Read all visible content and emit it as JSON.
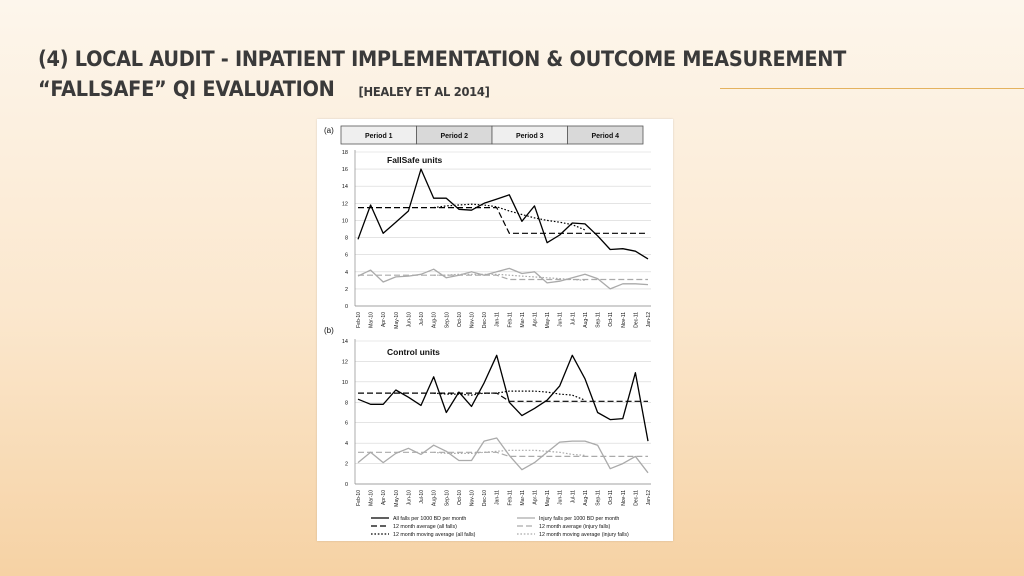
{
  "slide": {
    "title_line1": "(4) Local audit - Inpatient implementation & outcome measurement",
    "title_line2": "“Fallsafe” QI evaluation",
    "citation": "[Healey et al 2014]"
  },
  "colors": {
    "all_falls": "#000000",
    "injury_falls": "#aaaaaa",
    "accent_rule": "#e4b25e"
  },
  "chart_data": [
    {
      "type": "line",
      "panel": "(a)",
      "title": "FallSafe units",
      "periods": [
        "Period 1",
        "Period 2",
        "Period 3",
        "Period 4"
      ],
      "ylim": [
        0,
        18
      ],
      "yticks": [
        0,
        2,
        4,
        6,
        8,
        10,
        12,
        14,
        16,
        18
      ],
      "x": [
        "Feb-10",
        "Mar-10",
        "Apr-10",
        "May-10",
        "Jun-10",
        "Jul-10",
        "Aug-10",
        "Sep-10",
        "Oct-10",
        "Nov-10",
        "Dec-10",
        "Jan-11",
        "Feb-11",
        "Mar-11",
        "Apr-11",
        "May-11",
        "Jun-11",
        "Jul-11",
        "Aug-11",
        "Sep-11",
        "Oct-11",
        "Nov-11",
        "Dec-11",
        "Jan-12"
      ],
      "series": [
        {
          "name": "All falls per 1000 BD per month",
          "style": "solid",
          "color": "#000000",
          "values": [
            7.8,
            11.8,
            8.5,
            9.8,
            11.1,
            16.0,
            12.6,
            12.6,
            11.3,
            11.2,
            12.0,
            12.5,
            13.0,
            9.9,
            11.7,
            7.4,
            8.3,
            9.7,
            9.6,
            8.2,
            6.6,
            6.7,
            6.4,
            5.5
          ]
        },
        {
          "name": "12 month average (all falls)",
          "style": "dash",
          "color": "#000000",
          "values": [
            11.5,
            11.5,
            11.5,
            11.5,
            11.5,
            11.5,
            11.5,
            11.5,
            11.5,
            11.5,
            11.5,
            11.5,
            8.5,
            8.5,
            8.5,
            8.5,
            8.5,
            8.5,
            8.5,
            8.5,
            8.5,
            8.5,
            8.5,
            8.5
          ]
        },
        {
          "name": "12 month moving average (all falls)",
          "style": "dot",
          "color": "#000000",
          "values": [
            null,
            null,
            null,
            null,
            null,
            null,
            11.5,
            11.7,
            11.8,
            11.9,
            11.8,
            11.6,
            11.1,
            10.7,
            10.3,
            10.0,
            9.8,
            9.5,
            8.9,
            null,
            null,
            null,
            null,
            null
          ]
        },
        {
          "name": "Injury falls per 1000 BD per month",
          "style": "solid",
          "color": "#aaaaaa",
          "values": [
            3.5,
            4.2,
            2.8,
            3.4,
            3.5,
            3.7,
            4.3,
            3.3,
            3.6,
            4.0,
            3.6,
            4.0,
            4.4,
            3.8,
            4.0,
            2.7,
            2.9,
            3.3,
            3.7,
            3.2,
            2.0,
            2.6,
            2.6,
            2.5
          ]
        },
        {
          "name": "12 month average (injury falls)",
          "style": "dash",
          "color": "#aaaaaa",
          "values": [
            3.6,
            3.6,
            3.6,
            3.6,
            3.6,
            3.6,
            3.6,
            3.6,
            3.6,
            3.6,
            3.6,
            3.6,
            3.1,
            3.1,
            3.1,
            3.1,
            3.1,
            3.1,
            3.1,
            3.1,
            3.1,
            3.1,
            3.1,
            3.1
          ]
        },
        {
          "name": "12 month moving average (injury falls)",
          "style": "dot",
          "color": "#aaaaaa",
          "values": [
            null,
            null,
            null,
            null,
            null,
            null,
            3.6,
            3.6,
            3.7,
            3.7,
            3.7,
            3.7,
            3.6,
            3.5,
            3.4,
            3.3,
            3.2,
            3.1,
            3.0,
            null,
            null,
            null,
            null,
            null
          ]
        }
      ]
    },
    {
      "type": "line",
      "panel": "(b)",
      "title": "Control units",
      "ylim": [
        0,
        14
      ],
      "yticks": [
        0,
        2,
        4,
        6,
        8,
        10,
        12,
        14
      ],
      "x": [
        "Feb-10",
        "Mar-10",
        "Apr-10",
        "May-10",
        "Jun-10",
        "Jul-10",
        "Aug-10",
        "Sep-10",
        "Oct-10",
        "Nov-10",
        "Dec-10",
        "Jan-11",
        "Feb-11",
        "Mar-11",
        "Apr-11",
        "May-11",
        "Jun-11",
        "Jul-11",
        "Aug-11",
        "Sep-11",
        "Oct-11",
        "Nov-11",
        "Dec-11",
        "Jan-12"
      ],
      "series": [
        {
          "name": "All falls per 1000 BD per month",
          "style": "solid",
          "color": "#000000",
          "values": [
            8.3,
            7.8,
            7.8,
            9.2,
            8.5,
            7.7,
            10.5,
            7.0,
            9.0,
            7.6,
            9.9,
            12.6,
            8.0,
            6.7,
            7.4,
            8.2,
            9.6,
            12.6,
            10.3,
            7.0,
            6.3,
            6.4,
            10.9,
            4.2
          ]
        },
        {
          "name": "12 month average (all falls)",
          "style": "dash",
          "color": "#000000",
          "values": [
            8.9,
            8.9,
            8.9,
            8.9,
            8.9,
            8.9,
            8.9,
            8.9,
            8.9,
            8.9,
            8.9,
            8.9,
            8.1,
            8.1,
            8.1,
            8.1,
            8.1,
            8.1,
            8.1,
            8.1,
            8.1,
            8.1,
            8.1,
            8.1
          ]
        },
        {
          "name": "12 month moving average (all falls)",
          "style": "dot",
          "color": "#000000",
          "values": [
            null,
            null,
            null,
            null,
            null,
            null,
            8.9,
            8.8,
            8.8,
            8.7,
            8.9,
            8.9,
            9.1,
            9.1,
            9.1,
            9.0,
            8.8,
            8.7,
            8.2,
            null,
            null,
            null,
            null,
            null
          ]
        },
        {
          "name": "Injury falls per 1000 BD per month",
          "style": "solid",
          "color": "#aaaaaa",
          "values": [
            2.1,
            3.1,
            2.1,
            3.0,
            3.5,
            2.9,
            3.8,
            3.2,
            2.3,
            2.3,
            4.2,
            4.5,
            2.8,
            1.4,
            2.1,
            3.1,
            4.1,
            4.2,
            4.2,
            3.8,
            1.5,
            2.0,
            2.7,
            1.1
          ]
        },
        {
          "name": "12 month average (injury falls)",
          "style": "dash",
          "color": "#aaaaaa",
          "values": [
            3.1,
            3.1,
            3.1,
            3.1,
            3.1,
            3.1,
            3.1,
            3.1,
            3.1,
            3.1,
            3.1,
            3.1,
            2.7,
            2.7,
            2.7,
            2.7,
            2.7,
            2.7,
            2.7,
            2.7,
            2.7,
            2.7,
            2.7,
            2.7
          ]
        },
        {
          "name": "12 month moving average (injury falls)",
          "style": "dot",
          "color": "#aaaaaa",
          "values": [
            null,
            null,
            null,
            null,
            null,
            null,
            3.1,
            3.0,
            3.0,
            3.0,
            3.1,
            3.2,
            3.3,
            3.3,
            3.3,
            3.2,
            3.1,
            2.9,
            2.8,
            null,
            null,
            null,
            null,
            null
          ]
        }
      ]
    }
  ],
  "legend": [
    {
      "label": "All falls per 1000 BD per month",
      "style": "solid",
      "color": "#000000"
    },
    {
      "label": "Injury falls per 1000 BD per month",
      "style": "solid",
      "color": "#aaaaaa"
    },
    {
      "label": "12 month average (all falls)",
      "style": "dash",
      "color": "#000000"
    },
    {
      "label": "12 month average (injury falls)",
      "style": "dash",
      "color": "#aaaaaa"
    },
    {
      "label": "12 month moving average (all falls)",
      "style": "dot",
      "color": "#000000"
    },
    {
      "label": "12 month moving average (injury falls)",
      "style": "dot",
      "color": "#aaaaaa"
    }
  ]
}
